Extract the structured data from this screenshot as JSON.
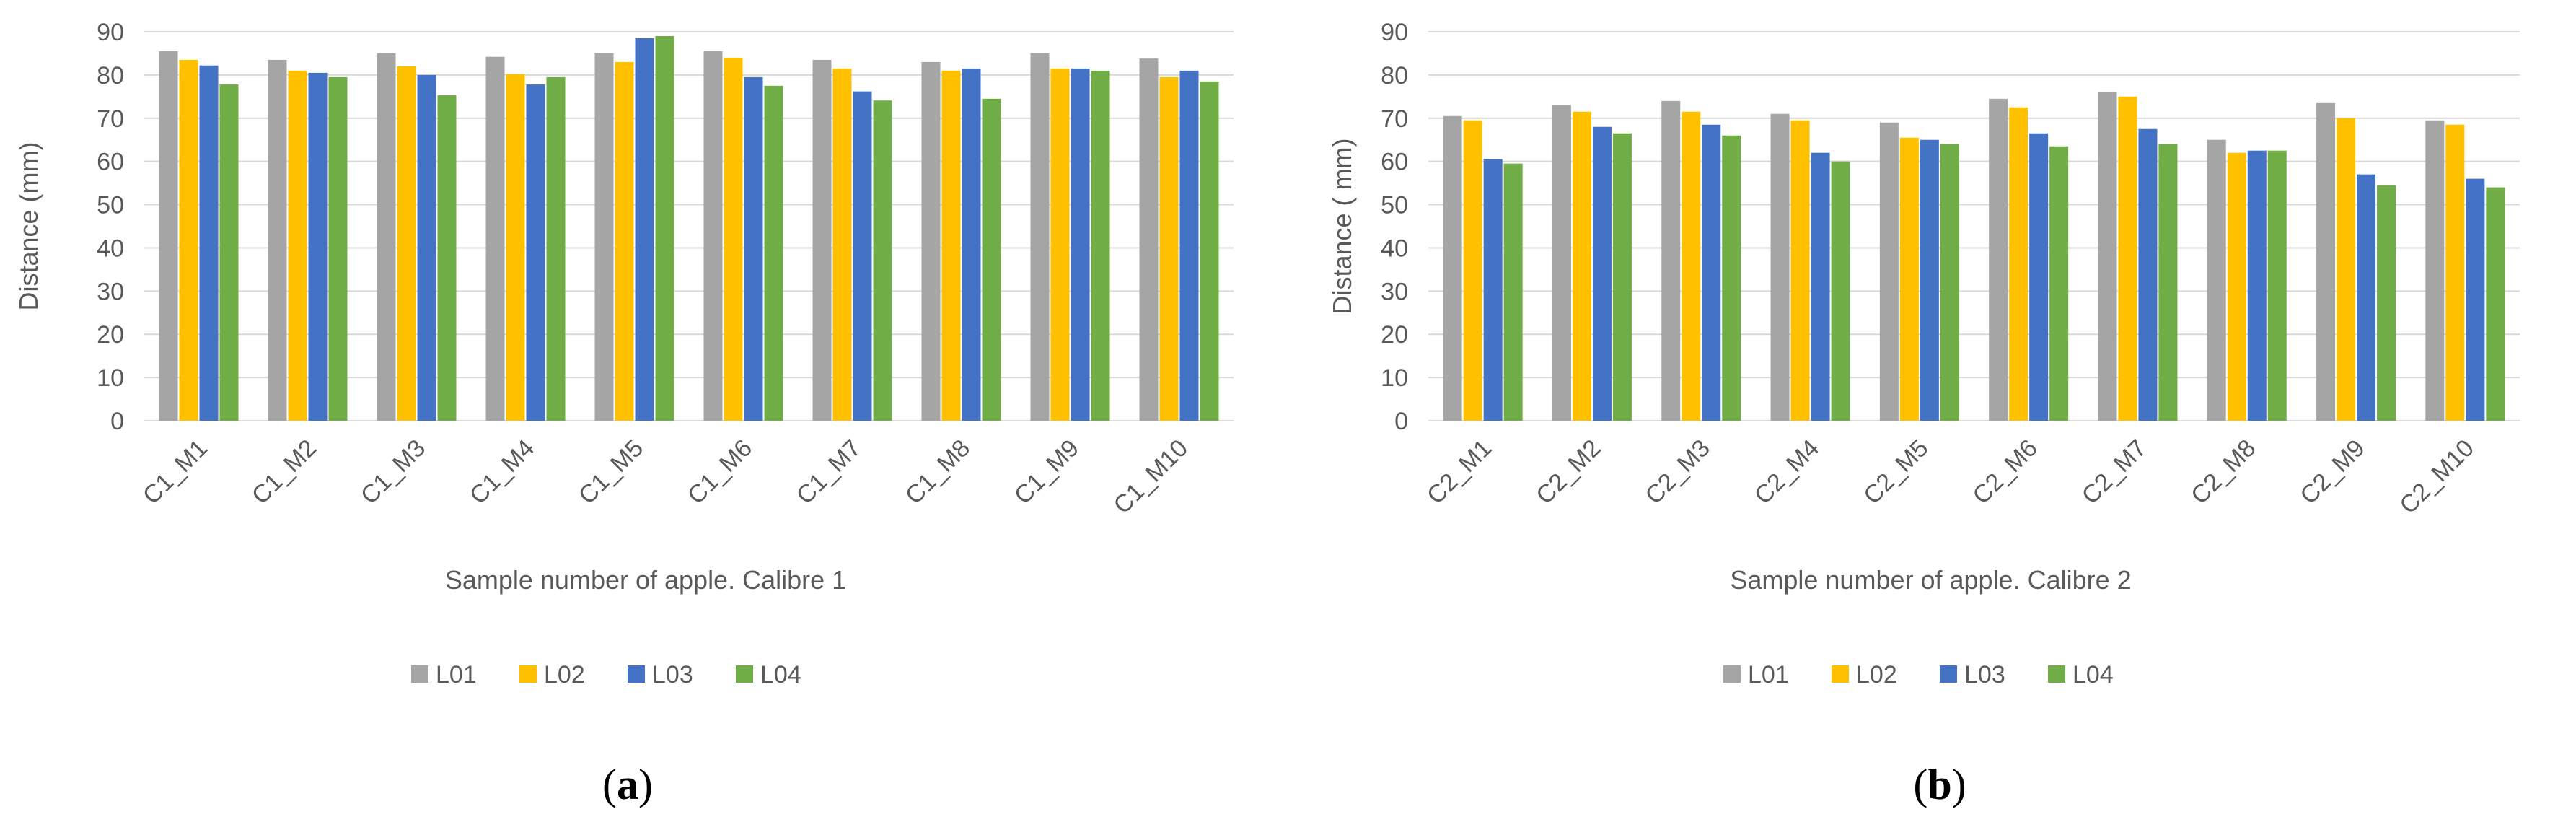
{
  "chart_data": [
    {
      "type": "bar",
      "panel_label": {
        "open": "(",
        "letter": "a",
        "close": ")"
      },
      "xlabel": "Sample number of apple. Calibre 1",
      "ylabel": "Distance (mm)",
      "ylim": [
        0,
        90
      ],
      "yticks": [
        "0",
        "10",
        "20",
        "30",
        "40",
        "50",
        "60",
        "70",
        "80",
        "90"
      ],
      "grid": true,
      "legend_position": "bottom",
      "categories": [
        "C1_M1",
        "C1_M2",
        "C1_M3",
        "C1_M4",
        "C1_M5",
        "C1_M6",
        "C1_M7",
        "C1_M8",
        "C1_M9",
        "C1_M10"
      ],
      "series": [
        {
          "name": "L01",
          "color": "#A5A5A5",
          "values": [
            85.5,
            83.5,
            85,
            84.2,
            85,
            85.5,
            83.5,
            83,
            85,
            83.8
          ]
        },
        {
          "name": "L02",
          "color": "#FFC000",
          "values": [
            83.5,
            81,
            82,
            80.2,
            83,
            84,
            81.5,
            81,
            81.5,
            79.5
          ]
        },
        {
          "name": "L03",
          "color": "#4472C4",
          "values": [
            82.2,
            80.5,
            80,
            77.8,
            88.5,
            79.5,
            76.2,
            81.5,
            81.5,
            81
          ]
        },
        {
          "name": "L04",
          "color": "#70AD47",
          "values": [
            77.8,
            79.5,
            75.3,
            79.5,
            89,
            77.5,
            74.1,
            74.5,
            81,
            78.5
          ]
        }
      ]
    },
    {
      "type": "bar",
      "panel_label": {
        "open": "(",
        "letter": "b",
        "close": ")"
      },
      "xlabel": "Sample number of apple. Calibre 2",
      "ylabel": "Distance ( mm)",
      "ylim": [
        0,
        90
      ],
      "yticks": [
        "0",
        "10",
        "20",
        "30",
        "40",
        "50",
        "60",
        "70",
        "80",
        "90"
      ],
      "grid": true,
      "legend_position": "bottom",
      "categories": [
        "C2_M1",
        "C2_M2",
        "C2_M3",
        "C2_M4",
        "C2_M5",
        "C2_M6",
        "C2_M7",
        "C2_M8",
        "C2_M9",
        "C2_M10"
      ],
      "series": [
        {
          "name": "L01",
          "color": "#A5A5A5",
          "values": [
            70.5,
            73,
            74,
            71,
            69,
            74.5,
            76,
            65,
            73.5,
            69.5
          ]
        },
        {
          "name": "L02",
          "color": "#FFC000",
          "values": [
            69.5,
            71.5,
            71.5,
            69.5,
            65.5,
            72.5,
            75,
            62,
            70,
            68.5
          ]
        },
        {
          "name": "L03",
          "color": "#4472C4",
          "values": [
            60.5,
            68,
            68.5,
            62,
            65,
            66.5,
            67.5,
            62.5,
            57,
            56
          ]
        },
        {
          "name": "L04",
          "color": "#70AD47",
          "values": [
            59.5,
            66.5,
            66,
            60,
            64,
            63.5,
            64,
            62.5,
            54.5,
            54
          ]
        }
      ]
    }
  ]
}
